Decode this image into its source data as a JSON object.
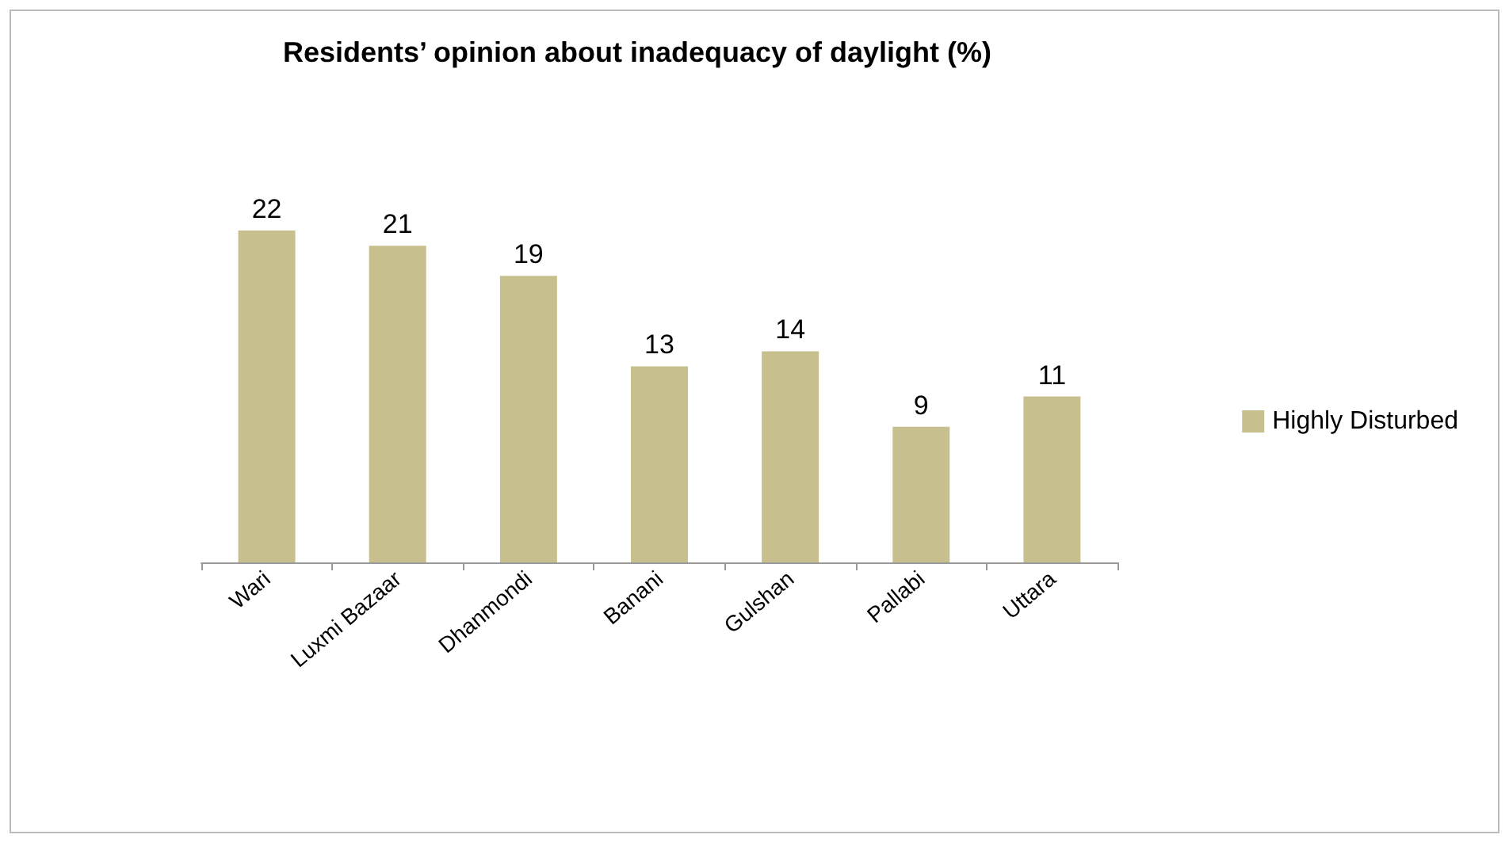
{
  "chart_data": {
    "type": "bar",
    "title": "Residents’ opinion about inadequacy of daylight (%)",
    "categories": [
      "Wari",
      "Luxmi Bazaar",
      "Dhanmondi",
      "Banani",
      "Gulshan",
      "Pallabi",
      "Uttara"
    ],
    "series": [
      {
        "name": "Highly Disturbed",
        "color": "#c8bf8e",
        "values": [
          22,
          21,
          19,
          13,
          14,
          9,
          11
        ]
      }
    ],
    "data_labels": true,
    "legend": "right",
    "tick_labels": "x"
  }
}
